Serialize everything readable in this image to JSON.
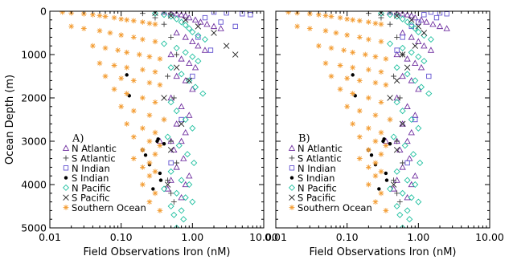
{
  "chart_data": [
    {
      "type": "scatter",
      "panel_label": "A)",
      "xlabel": "Field Observations Iron (nM)",
      "ylabel": "Ocean Depth (m)",
      "xscale": "log",
      "xlim": [
        0.01,
        10
      ],
      "ylim": [
        5000,
        0
      ],
      "y_inverted": true,
      "x_ticks": [
        "0.01",
        "0.10",
        "1.00",
        "10.00"
      ],
      "y_ticks": [
        "0",
        "1000",
        "2000",
        "3000",
        "4000",
        "5000"
      ],
      "legend_position": "bottom-left",
      "series": [
        {
          "name": "N Atlantic",
          "marker": "triangle",
          "color": "#7030a0",
          "x": [
            0.4,
            0.5,
            0.6,
            0.7,
            0.8,
            0.9,
            1.1,
            1.3,
            1.6,
            2.0,
            2.5,
            0.6,
            0.8,
            1.0,
            1.2,
            1.5,
            0.5,
            0.7,
            0.9,
            1.1,
            0.6,
            0.8,
            1.0,
            0.5,
            0.7,
            0.9,
            0.6,
            0.8,
            0.5,
            0.7,
            0.35,
            0.55,
            0.75,
            0.6,
            0.9,
            0.5,
            0.8,
            0.45,
            0.7
          ],
          "y": [
            20,
            40,
            60,
            80,
            100,
            150,
            200,
            250,
            300,
            350,
            400,
            500,
            600,
            700,
            800,
            900,
            1000,
            1100,
            1200,
            1300,
            1500,
            1600,
            1800,
            2000,
            2200,
            2400,
            2600,
            2800,
            3000,
            3000,
            3000,
            3200,
            3400,
            3600,
            3800,
            3900,
            4000,
            4100,
            4300
          ]
        },
        {
          "name": "S Atlantic",
          "marker": "plus",
          "color": "#404040",
          "x": [
            0.2,
            0.3,
            0.4,
            0.5,
            0.6,
            0.45,
            0.55,
            0.4,
            0.5,
            0.6,
            0.45,
            0.5,
            0.55
          ],
          "y": [
            50,
            150,
            300,
            600,
            1000,
            1500,
            2000,
            2500,
            3000,
            3500,
            3900,
            4200,
            4400
          ]
        },
        {
          "name": "N Indian",
          "marker": "square",
          "color": "#6050d0",
          "x": [
            2.0,
            3.0,
            5.0,
            6.5,
            1.5,
            2.5,
            4.0,
            1.2,
            1.8,
            1.0,
            0.7,
            0.5
          ],
          "y": [
            20,
            40,
            60,
            80,
            150,
            250,
            350,
            600,
            900,
            1500,
            2500,
            3500
          ]
        },
        {
          "name": "S Indian",
          "marker": "dot",
          "color": "#000000",
          "x": [
            0.12,
            0.13,
            0.22,
            0.25,
            0.35,
            0.32,
            0.33,
            0.28,
            0.36,
            0.4,
            0.2
          ],
          "y": [
            1470,
            1950,
            3320,
            3540,
            3740,
            3000,
            2950,
            4100,
            3900,
            3060,
            3200
          ]
        },
        {
          "name": "N Pacific",
          "marker": "diamond",
          "color": "#20c0a0",
          "x": [
            0.3,
            0.4,
            0.5,
            0.6,
            0.7,
            0.8,
            0.9,
            1.0,
            1.2,
            1.5,
            0.4,
            0.6,
            0.8,
            1.0,
            1.2,
            0.5,
            0.7,
            0.9,
            1.1,
            1.4,
            0.5,
            0.6,
            0.8,
            1.0,
            0.45,
            0.65,
            0.85,
            1.05,
            0.5,
            0.7,
            0.9,
            0.4,
            0.6,
            0.8,
            1.0,
            0.5,
            0.7,
            0.55,
            0.75,
            0.6
          ],
          "y": [
            50,
            80,
            120,
            180,
            250,
            320,
            400,
            480,
            560,
            650,
            750,
            850,
            950,
            1050,
            1150,
            1300,
            1450,
            1600,
            1750,
            1900,
            2100,
            2300,
            2500,
            2700,
            2900,
            3100,
            3300,
            3500,
            3700,
            3900,
            4000,
            4100,
            4200,
            4300,
            4400,
            4500,
            4600,
            4700,
            4800,
            5000
          ]
        },
        {
          "name": "S Pacific",
          "marker": "x",
          "color": "#202020",
          "x": [
            0.3,
            0.5,
            0.8,
            1.2,
            2.0,
            3.0,
            4.0,
            0.6,
            0.9,
            0.4,
            0.7,
            0.5,
            0.45
          ],
          "y": [
            40,
            100,
            200,
            350,
            500,
            800,
            1000,
            1300,
            1600,
            2000,
            2600,
            3200,
            4000
          ]
        },
        {
          "name": "Southern Ocean",
          "marker": "asterisk",
          "color": "#f39c32",
          "x": [
            0.015,
            0.02,
            0.03,
            0.04,
            0.05,
            0.06,
            0.08,
            0.1,
            0.12,
            0.15,
            0.2,
            0.25,
            0.3,
            0.02,
            0.03,
            0.05,
            0.07,
            0.1,
            0.15,
            0.2,
            0.3,
            0.04,
            0.06,
            0.09,
            0.12,
            0.18,
            0.25,
            0.35,
            0.05,
            0.08,
            0.12,
            0.2,
            0.3,
            0.06,
            0.1,
            0.15,
            0.25,
            0.35,
            0.08,
            0.12,
            0.2,
            0.3,
            0.1,
            0.15,
            0.25,
            0.4,
            0.12,
            0.2,
            0.3,
            0.15,
            0.25,
            0.35,
            0.2,
            0.3,
            0.15,
            0.25,
            0.2,
            0.3,
            0.25,
            0.2,
            0.3,
            0.25,
            0.35
          ],
          "y": [
            20,
            40,
            60,
            80,
            100,
            120,
            150,
            180,
            200,
            220,
            250,
            280,
            300,
            350,
            400,
            450,
            500,
            550,
            600,
            650,
            700,
            800,
            850,
            900,
            950,
            1000,
            1050,
            1100,
            1200,
            1250,
            1300,
            1350,
            1400,
            1500,
            1550,
            1600,
            1650,
            1700,
            1800,
            1900,
            2000,
            2100,
            2200,
            2300,
            2400,
            2500,
            2600,
            2700,
            2800,
            2900,
            3000,
            3100,
            3200,
            3300,
            3400,
            3500,
            3600,
            3700,
            3800,
            4000,
            4200,
            4400,
            4600
          ]
        }
      ]
    },
    {
      "type": "scatter",
      "panel_label": "B)",
      "xlabel": "Field Observations Iron (nM)",
      "xscale": "log",
      "xlim": [
        0.01,
        10
      ],
      "ylim": [
        5000,
        0
      ],
      "y_inverted": true,
      "x_ticks": [
        "0.01",
        "0.10",
        "1.00",
        "10.00"
      ],
      "legend_position": "bottom-left",
      "series": [
        {
          "name": "N Atlantic",
          "marker": "triangle",
          "color": "#7030a0",
          "x": [
            0.4,
            0.5,
            0.6,
            0.7,
            0.8,
            0.9,
            1.1,
            1.3,
            1.6,
            2.0,
            2.5,
            0.6,
            0.8,
            1.0,
            1.2,
            1.5,
            0.5,
            0.7,
            0.9,
            1.1,
            0.6,
            0.8,
            1.0,
            0.5,
            0.7,
            0.9,
            0.6,
            0.8,
            0.5,
            0.7,
            0.35,
            0.55,
            0.75,
            0.6,
            0.9,
            0.5,
            0.8,
            0.45,
            0.7
          ],
          "y": [
            20,
            40,
            60,
            80,
            100,
            150,
            200,
            250,
            300,
            350,
            400,
            500,
            600,
            700,
            800,
            900,
            1000,
            1100,
            1200,
            1300,
            1500,
            1600,
            1800,
            2000,
            2200,
            2400,
            2600,
            2800,
            3000,
            3000,
            3000,
            3200,
            3400,
            3600,
            3800,
            3900,
            4000,
            4100,
            4300
          ]
        },
        {
          "name": "S Atlantic",
          "marker": "plus",
          "color": "#404040",
          "x": [
            0.2,
            0.3,
            0.4,
            0.5,
            0.6,
            0.45,
            0.55,
            0.4,
            0.5,
            0.6,
            0.45,
            0.5,
            0.55
          ],
          "y": [
            50,
            150,
            300,
            600,
            1000,
            1500,
            2000,
            2500,
            3000,
            3500,
            3900,
            4200,
            4400
          ]
        },
        {
          "name": "N Indian",
          "marker": "square",
          "color": "#6050d0",
          "x": [
            1.5,
            2.0,
            2.5,
            1.2,
            1.8,
            1.0,
            0.8,
            0.6,
            0.5,
            1.4,
            0.9,
            0.7
          ],
          "y": [
            20,
            40,
            60,
            80,
            150,
            250,
            350,
            600,
            900,
            1500,
            2500,
            3500
          ]
        },
        {
          "name": "S Indian",
          "marker": "dot",
          "color": "#000000",
          "x": [
            0.12,
            0.13,
            0.22,
            0.25,
            0.35,
            0.32,
            0.33,
            0.28,
            0.36,
            0.4,
            0.2
          ],
          "y": [
            1470,
            1950,
            3320,
            3540,
            3740,
            3000,
            2950,
            4100,
            3900,
            3060,
            3200
          ]
        },
        {
          "name": "N Pacific",
          "marker": "diamond",
          "color": "#20c0a0",
          "x": [
            0.3,
            0.4,
            0.5,
            0.6,
            0.7,
            0.8,
            0.9,
            1.0,
            1.2,
            1.5,
            0.4,
            0.6,
            0.8,
            1.0,
            1.2,
            0.5,
            0.7,
            0.9,
            1.1,
            1.4,
            0.5,
            0.6,
            0.8,
            1.0,
            0.45,
            0.65,
            0.85,
            1.05,
            0.5,
            0.7,
            0.9,
            0.4,
            0.6,
            0.8,
            1.0,
            0.5,
            0.7,
            0.55,
            0.75,
            0.6
          ],
          "y": [
            50,
            80,
            120,
            180,
            250,
            320,
            400,
            480,
            560,
            650,
            750,
            850,
            950,
            1050,
            1150,
            1300,
            1450,
            1600,
            1750,
            1900,
            2100,
            2300,
            2500,
            2700,
            2900,
            3100,
            3300,
            3500,
            3700,
            3900,
            4000,
            4100,
            4200,
            4300,
            4400,
            4500,
            4600,
            4700,
            4800,
            5000
          ]
        },
        {
          "name": "S Pacific",
          "marker": "x",
          "color": "#202020",
          "x": [
            0.3,
            0.5,
            0.8,
            1.0,
            1.2,
            0.9,
            0.6,
            0.7,
            0.5,
            0.4,
            0.6,
            0.5,
            0.45
          ],
          "y": [
            40,
            100,
            200,
            350,
            500,
            800,
            1000,
            1300,
            1600,
            2000,
            2600,
            3200,
            4000
          ]
        },
        {
          "name": "Southern Ocean",
          "marker": "asterisk",
          "color": "#f39c32",
          "x": [
            0.015,
            0.02,
            0.03,
            0.04,
            0.05,
            0.06,
            0.08,
            0.1,
            0.12,
            0.15,
            0.2,
            0.25,
            0.3,
            0.02,
            0.03,
            0.05,
            0.07,
            0.1,
            0.15,
            0.2,
            0.3,
            0.04,
            0.06,
            0.09,
            0.12,
            0.18,
            0.25,
            0.35,
            0.05,
            0.08,
            0.12,
            0.2,
            0.3,
            0.06,
            0.1,
            0.15,
            0.25,
            0.35,
            0.08,
            0.12,
            0.2,
            0.3,
            0.1,
            0.15,
            0.25,
            0.4,
            0.12,
            0.2,
            0.3,
            0.15,
            0.25,
            0.35,
            0.2,
            0.3,
            0.15,
            0.25,
            0.2,
            0.3,
            0.25,
            0.2,
            0.3,
            0.25,
            0.35
          ],
          "y": [
            20,
            40,
            60,
            80,
            100,
            120,
            150,
            180,
            200,
            220,
            250,
            280,
            300,
            350,
            400,
            450,
            500,
            550,
            600,
            650,
            700,
            800,
            850,
            900,
            950,
            1000,
            1050,
            1100,
            1200,
            1250,
            1300,
            1350,
            1400,
            1500,
            1550,
            1600,
            1650,
            1700,
            1800,
            1900,
            2000,
            2100,
            2200,
            2300,
            2400,
            2500,
            2600,
            2700,
            2800,
            2900,
            3000,
            3100,
            3200,
            3300,
            3400,
            3500,
            3600,
            3700,
            3800,
            4000,
            4200,
            4400,
            4600
          ]
        }
      ]
    }
  ]
}
